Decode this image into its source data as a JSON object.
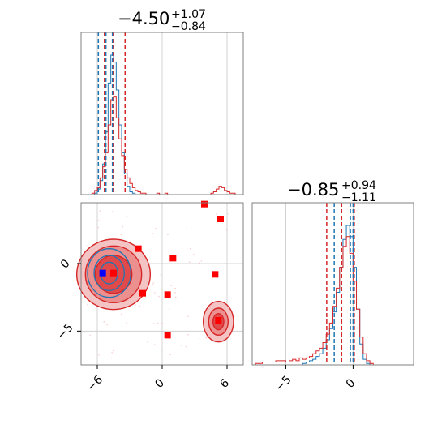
{
  "chart_data": {
    "type": "corner",
    "colors": {
      "blue": "#1f77b4",
      "red": "#d62728",
      "square": "#ff0000",
      "blue_marker": "#0000ff",
      "grid": "#c8c8c8"
    },
    "parameters": [
      {
        "title": {
          "median": "−4.50",
          "plus": "+1.07",
          "minus": "−0.84"
        },
        "range": [
          -7.5,
          7.5
        ],
        "ticks": [
          -6,
          0,
          6
        ],
        "tick_labels": [
          "−6",
          "0",
          "6"
        ],
        "red_quantiles": [
          -5.34,
          -4.5,
          -3.43
        ],
        "blue_quantiles": [
          -5.9,
          -5.2,
          -4.6
        ]
      },
      {
        "title": {
          "median": "−0.85",
          "plus": "+0.94",
          "minus": "−1.11"
        },
        "range": [
          -7.5,
          4.5
        ],
        "ticks": [
          -5,
          0
        ],
        "tick_labels": [
          "−5",
          "0"
        ],
        "red_quantiles": [
          -1.96,
          -0.85,
          0.09
        ],
        "blue_quantiles": [
          -1.4,
          -0.2,
          0.0
        ]
      }
    ],
    "y_axis_2d": {
      "range": [
        -7.5,
        4.5
      ],
      "ticks": [
        0,
        -5
      ],
      "tick_labels": [
        "0",
        "−5"
      ]
    },
    "red_points": [
      [
        3.9,
        4.4
      ],
      [
        5.4,
        3.3
      ],
      [
        -2.2,
        1.1
      ],
      [
        1.0,
        0.4
      ],
      [
        4.9,
        -0.8
      ],
      [
        -1.8,
        -2.2
      ],
      [
        0.5,
        -2.3
      ],
      [
        5.2,
        -4.2
      ],
      [
        0.5,
        -5.3
      ],
      [
        -4.5,
        -0.7
      ]
    ],
    "blue_points": [
      [
        -5.5,
        -0.7
      ]
    ],
    "hist_red_1d_x": [
      0,
      0,
      0,
      0,
      1,
      3,
      5,
      12,
      20,
      30,
      50,
      68,
      70,
      55,
      40,
      28,
      18,
      12,
      8,
      5,
      3,
      2,
      1,
      1,
      0,
      0,
      0,
      0,
      1,
      0,
      0,
      1,
      0,
      0,
      0,
      0,
      0,
      0,
      0,
      0,
      0,
      0,
      0,
      0,
      0,
      0,
      0,
      0,
      1,
      2,
      4,
      6,
      5,
      3,
      2,
      1,
      1,
      0,
      0,
      0
    ],
    "hist_blue_1d_x": [
      0,
      0,
      0,
      0,
      0,
      1,
      4,
      10,
      22,
      45,
      80,
      100,
      95,
      75,
      50,
      30,
      15,
      6,
      2,
      1,
      0,
      0,
      0,
      0,
      0,
      0,
      0,
      0,
      0,
      0,
      0,
      0,
      0,
      0,
      0,
      0,
      0,
      0,
      0,
      0,
      0,
      0,
      0,
      0,
      0,
      0,
      0,
      0,
      0,
      0,
      0,
      0,
      0,
      0,
      0,
      0,
      0,
      0,
      0,
      0
    ],
    "hist_red_1d_y": [
      0,
      1,
      1,
      2,
      2,
      2,
      2,
      3,
      3,
      3,
      2,
      3,
      4,
      3,
      5,
      4,
      5,
      6,
      8,
      10,
      12,
      16,
      22,
      30,
      42,
      55,
      70,
      85,
      92,
      80,
      60,
      40,
      20,
      8,
      3,
      1,
      0,
      0,
      0,
      0,
      0,
      0,
      0,
      0,
      0,
      0,
      0,
      0
    ],
    "hist_blue_1d_y": [
      0,
      0,
      0,
      0,
      0,
      0,
      0,
      0,
      0,
      0,
      0,
      0,
      0,
      0,
      0,
      1,
      2,
      3,
      4,
      6,
      8,
      12,
      18,
      26,
      38,
      52,
      70,
      90,
      100,
      92,
      70,
      40,
      15,
      4,
      1,
      0,
      0,
      0,
      0,
      0,
      0,
      0,
      0,
      0,
      0,
      0,
      0,
      0
    ]
  }
}
